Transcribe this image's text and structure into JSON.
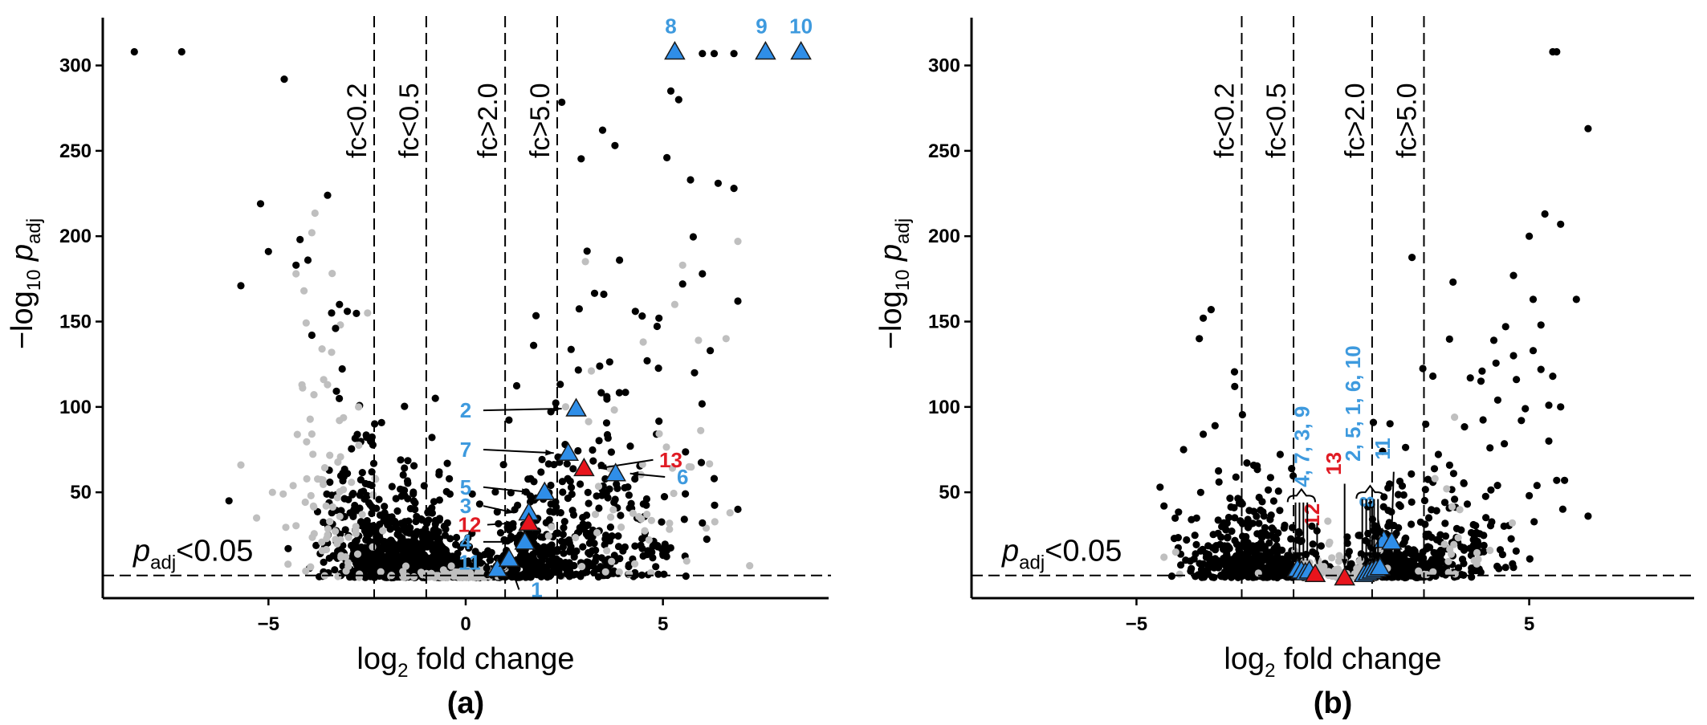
{
  "colors": {
    "significant": "#000000",
    "nonsignificant": "#bfbfbf",
    "blue_marker": "#2f8ee8",
    "red_marker": "#e8141c",
    "blue_label": "#3e9ade",
    "red_label": "#e01b24"
  },
  "chart_data": [
    {
      "type": "scatter",
      "panel_label": "(a)",
      "xlabel": "log2 fold change",
      "xlabel_parts": {
        "pre": "log",
        "sub": "2",
        "post": " fold change"
      },
      "ylabel_parts": {
        "pre": "−log",
        "sub1": "10",
        "mid": " p",
        "sub2": "adj"
      },
      "xlim": [
        -9.2,
        9.2
      ],
      "ylim": [
        -12,
        328
      ],
      "xticks": [
        -5,
        0,
        5
      ],
      "xtick_labels": [
        "−5",
        "0",
        "5"
      ],
      "yticks": [
        50,
        100,
        150,
        200,
        250,
        300
      ],
      "ytick_labels": [
        "50",
        "100",
        "150",
        "200",
        "250",
        "300"
      ],
      "thresholds": [
        {
          "x": -2.32,
          "label": "fc<0.2"
        },
        {
          "x": -1.0,
          "label": "fc<0.5"
        },
        {
          "x": 1.0,
          "label": "fc>2.0"
        },
        {
          "x": 2.32,
          "label": "fc>5.0"
        }
      ],
      "padj_line": {
        "y": 1.3,
        "label_parts": {
          "pre": "p",
          "sub": "adj",
          "post": "<0.05"
        }
      },
      "highlighted": [
        {
          "id": "1",
          "x": 0.8,
          "y": 5,
          "color": "blue",
          "label_x": 1.8,
          "label_y": -7,
          "arrow": true
        },
        {
          "id": "2",
          "x": 2.8,
          "y": 99,
          "color": "blue",
          "label_x": 0.0,
          "label_y": 98,
          "arrow": true
        },
        {
          "id": "7",
          "x": 2.6,
          "y": 73,
          "color": "blue",
          "label_x": 0.0,
          "label_y": 75,
          "arrow": true
        },
        {
          "id": "13",
          "x": 3.0,
          "y": 64,
          "color": "red",
          "label_x": 5.2,
          "label_y": 69,
          "arrow": true
        },
        {
          "id": "6",
          "x": 3.8,
          "y": 61,
          "color": "blue",
          "label_x": 5.5,
          "label_y": 59,
          "arrow": true
        },
        {
          "id": "5",
          "x": 2.0,
          "y": 50,
          "color": "blue",
          "label_x": 0.0,
          "label_y": 53,
          "arrow": true
        },
        {
          "id": "3",
          "x": 1.6,
          "y": 38,
          "color": "blue",
          "label_x": 0.0,
          "label_y": 42,
          "arrow": true
        },
        {
          "id": "12",
          "x": 1.6,
          "y": 32,
          "color": "red",
          "label_x": 0.1,
          "label_y": 31,
          "arrow": true
        },
        {
          "id": "4",
          "x": 1.5,
          "y": 21,
          "color": "blue",
          "label_x": 0.0,
          "label_y": 21,
          "arrow": true
        },
        {
          "id": "11",
          "x": 1.1,
          "y": 11,
          "color": "blue",
          "label_x": 0.1,
          "label_y": 9,
          "arrow": true
        },
        {
          "id": "8",
          "x": 5.3,
          "y": 308,
          "color": "blue",
          "label_x": 5.2,
          "label_y": 323,
          "arrow": false
        },
        {
          "id": "9",
          "x": 7.6,
          "y": 308,
          "color": "blue",
          "label_x": 7.5,
          "label_y": 323,
          "arrow": false
        },
        {
          "id": "10",
          "x": 8.5,
          "y": 308,
          "color": "blue",
          "label_x": 8.5,
          "label_y": 323,
          "arrow": false
        }
      ],
      "seed": 7,
      "clusters": [
        {
          "n": 650,
          "x_mean": -1.35,
          "x_sd": 0.55,
          "y_scale": 13,
          "color": "black"
        },
        {
          "n": 240,
          "x_mean": -2.6,
          "x_sd": 0.55,
          "y_scale": 28,
          "color": "black"
        },
        {
          "n": 80,
          "x_mean": -3.3,
          "x_sd": 0.6,
          "y_scale": 55,
          "color": "grey"
        },
        {
          "n": 200,
          "x_mean": 0.0,
          "x_sd": 0.6,
          "y_scale": 3,
          "color": "black"
        },
        {
          "n": 90,
          "x_mean": 0.0,
          "x_sd": 0.7,
          "y_scale": 2,
          "color": "grey"
        },
        {
          "n": 180,
          "x_mean": 1.6,
          "x_sd": 0.45,
          "y_scale": 14,
          "color": "black"
        },
        {
          "n": 230,
          "x_mean": 3.0,
          "x_sd": 0.9,
          "y_scale": 32,
          "color": "black"
        },
        {
          "n": 70,
          "x_mean": 4.0,
          "x_sd": 1.0,
          "y_scale": 60,
          "color": "black"
        },
        {
          "n": 45,
          "x_mean": 4.5,
          "x_sd": 1.1,
          "y_scale": 55,
          "color": "grey"
        }
      ],
      "extra_points": [
        [
          -8.4,
          308
        ],
        [
          -7.2,
          308
        ],
        [
          -4.6,
          292
        ],
        [
          -5.2,
          219
        ],
        [
          -3.5,
          224
        ],
        [
          -5.0,
          191
        ],
        [
          -4.3,
          183
        ],
        [
          -4.2,
          198
        ],
        [
          -5.7,
          171
        ],
        [
          -4.0,
          186
        ],
        [
          -3.2,
          160
        ],
        [
          -3.0,
          156
        ],
        [
          -3.4,
          155
        ],
        [
          -3.9,
          142
        ],
        [
          -3.3,
          146
        ],
        [
          -6.0,
          45
        ],
        [
          -4.5,
          17
        ],
        [
          -3.6,
          9
        ],
        [
          -3.0,
          61
        ],
        [
          5.2,
          285
        ],
        [
          5.4,
          280
        ],
        [
          5.7,
          233
        ],
        [
          6.4,
          231
        ],
        [
          6.8,
          228
        ],
        [
          6.0,
          307
        ],
        [
          6.3,
          307
        ],
        [
          6.8,
          307
        ],
        [
          5.5,
          172
        ],
        [
          6.9,
          162
        ],
        [
          6.0,
          178
        ],
        [
          5.1,
          246
        ],
        [
          3.9,
          186
        ],
        [
          4.3,
          156
        ],
        [
          4.9,
          152
        ],
        [
          6.2,
          133
        ],
        [
          4.6,
          127
        ],
        [
          5.8,
          120
        ],
        [
          3.5,
          166
        ],
        [
          6.3,
          58
        ],
        [
          6.0,
          32
        ],
        [
          6.9,
          40
        ]
      ],
      "extra_grey": [
        [
          -3.9,
          202
        ],
        [
          -4.1,
          168
        ],
        [
          -4.3,
          178
        ],
        [
          -5.7,
          66
        ],
        [
          -4.9,
          50
        ],
        [
          -5.3,
          35
        ],
        [
          -3.2,
          92
        ],
        [
          -3.4,
          132
        ],
        [
          -3.6,
          116
        ],
        [
          5.5,
          183
        ],
        [
          6.9,
          197
        ],
        [
          5.3,
          160
        ],
        [
          6.6,
          140
        ],
        [
          4.5,
          138
        ],
        [
          6.7,
          38
        ],
        [
          7.2,
          7
        ],
        [
          5.9,
          139
        ]
      ]
    },
    {
      "type": "scatter",
      "panel_label": "(b)",
      "xlabel": "log2 fold change",
      "xlabel_parts": {
        "pre": "log",
        "sub": "2",
        "post": " fold change"
      },
      "ylabel_parts": {
        "pre": "−log",
        "sub1": "10",
        "mid": " p",
        "sub2": "adj"
      },
      "xlim": [
        -9.2,
        9.2
      ],
      "ylim": [
        -12,
        328
      ],
      "xticks": [
        -5,
        5
      ],
      "xtick_labels": [
        "−5",
        "5"
      ],
      "yticks": [
        50,
        100,
        150,
        200,
        250,
        300
      ],
      "ytick_labels": [
        "50",
        "100",
        "150",
        "200",
        "250",
        "300"
      ],
      "thresholds": [
        {
          "x": -2.32,
          "label": "fc<0.2"
        },
        {
          "x": -1.0,
          "label": "fc<0.5"
        },
        {
          "x": 1.0,
          "label": "fc>2.0"
        },
        {
          "x": 2.32,
          "label": "fc>5.0"
        }
      ],
      "padj_line": {
        "y": 1.3,
        "label_parts": {
          "pre": "p",
          "sub": "adj",
          "post": "<0.05"
        }
      },
      "highlighted": [
        {
          "id": "4",
          "x": -0.9,
          "y": 5,
          "color": "blue"
        },
        {
          "id": "7",
          "x": -0.8,
          "y": 4,
          "color": "blue"
        },
        {
          "id": "3",
          "x": -0.7,
          "y": 3,
          "color": "blue"
        },
        {
          "id": "9",
          "x": -0.6,
          "y": 4,
          "color": "blue"
        },
        {
          "id": "12",
          "x": -0.45,
          "y": 2,
          "color": "red"
        },
        {
          "id": "13",
          "x": 0.3,
          "y": 0,
          "color": "red"
        },
        {
          "id": "2",
          "x": 0.8,
          "y": 2,
          "color": "blue"
        },
        {
          "id": "5",
          "x": 0.9,
          "y": 3,
          "color": "blue"
        },
        {
          "id": "1",
          "x": 1.0,
          "y": 4,
          "color": "blue"
        },
        {
          "id": "6",
          "x": 1.1,
          "y": 5,
          "color": "blue"
        },
        {
          "id": "10",
          "x": 1.2,
          "y": 6,
          "color": "blue"
        },
        {
          "id": "8",
          "x": 1.3,
          "y": 22,
          "color": "blue"
        },
        {
          "id": "11",
          "x": 1.5,
          "y": 21,
          "color": "blue"
        }
      ],
      "group_labels": [
        {
          "text": "4, 7, 3, 9",
          "color": "blue",
          "x": -0.6,
          "y": 53
        },
        {
          "text": "12",
          "color": "red",
          "x": -0.35,
          "y": 30
        },
        {
          "text": "13",
          "color": "red",
          "x": 0.2,
          "y": 60
        },
        {
          "text": "2, 5, 1, 6, 10",
          "color": "blue",
          "x": 0.7,
          "y": 68
        },
        {
          "text": "8",
          "color": "blue",
          "x": 1.05,
          "y": 41
        },
        {
          "text": "11",
          "color": "blue",
          "x": 1.45,
          "y": 69
        }
      ],
      "seed": 19,
      "clusters": [
        {
          "n": 330,
          "x_mean": -1.9,
          "x_sd": 0.7,
          "y_scale": 11,
          "color": "black"
        },
        {
          "n": 320,
          "x_mean": 1.7,
          "x_sd": 0.7,
          "y_scale": 11,
          "color": "black"
        },
        {
          "n": 80,
          "x_mean": -2.2,
          "x_sd": 0.9,
          "y_scale": 22,
          "color": "black"
        },
        {
          "n": 90,
          "x_mean": 2.4,
          "x_sd": 0.9,
          "y_scale": 24,
          "color": "black"
        },
        {
          "n": 60,
          "x_mean": 0.0,
          "x_sd": 0.8,
          "y_scale": 6,
          "color": "grey"
        },
        {
          "n": 60,
          "x_mean": 3.5,
          "x_sd": 0.8,
          "y_scale": 45,
          "color": "black"
        },
        {
          "n": 25,
          "x_mean": -3.0,
          "x_sd": 0.6,
          "y_scale": 30,
          "color": "black"
        },
        {
          "n": 20,
          "x_mean": 3.0,
          "x_sd": 0.9,
          "y_scale": 15,
          "color": "grey"
        }
      ],
      "extra_points": [
        [
          -3.3,
          152
        ],
        [
          -3.1,
          157
        ],
        [
          -3.4,
          140
        ],
        [
          -3.0,
          89
        ],
        [
          -3.3,
          84
        ],
        [
          -3.8,
          75
        ],
        [
          -4.3,
          42
        ],
        [
          -4.4,
          53
        ],
        [
          -2.9,
          56
        ],
        [
          -3.6,
          34
        ],
        [
          5.6,
          308
        ],
        [
          5.7,
          308
        ],
        [
          6.5,
          263
        ],
        [
          5.4,
          213
        ],
        [
          5.8,
          207
        ],
        [
          5.0,
          200
        ],
        [
          6.2,
          163
        ],
        [
          4.6,
          177
        ],
        [
          5.1,
          163
        ],
        [
          5.3,
          148
        ],
        [
          4.1,
          139
        ],
        [
          4.4,
          147
        ],
        [
          4.6,
          130
        ],
        [
          3.8,
          121
        ],
        [
          4.2,
          104
        ],
        [
          3.5,
          117
        ],
        [
          4.9,
          99
        ],
        [
          5.5,
          101
        ],
        [
          4.8,
          92
        ],
        [
          5.8,
          100
        ],
        [
          5.3,
          122
        ],
        [
          5.1,
          133
        ],
        [
          5.6,
          118
        ],
        [
          5.5,
          80
        ],
        [
          4.0,
          76
        ],
        [
          5.7,
          57
        ],
        [
          5.9,
          57
        ],
        [
          6.5,
          36
        ],
        [
          5.0,
          48
        ],
        [
          5.2,
          54
        ],
        [
          4.4,
          6
        ],
        [
          4.6,
          6
        ]
      ],
      "extra_grey": [
        [
          -4.0,
          15
        ],
        [
          -4.3,
          12
        ],
        [
          -3.9,
          2
        ],
        [
          3.1,
          94
        ],
        [
          2.6,
          58
        ],
        [
          2.9,
          52
        ],
        [
          3.6,
          10
        ],
        [
          4.0,
          16
        ]
      ]
    }
  ]
}
